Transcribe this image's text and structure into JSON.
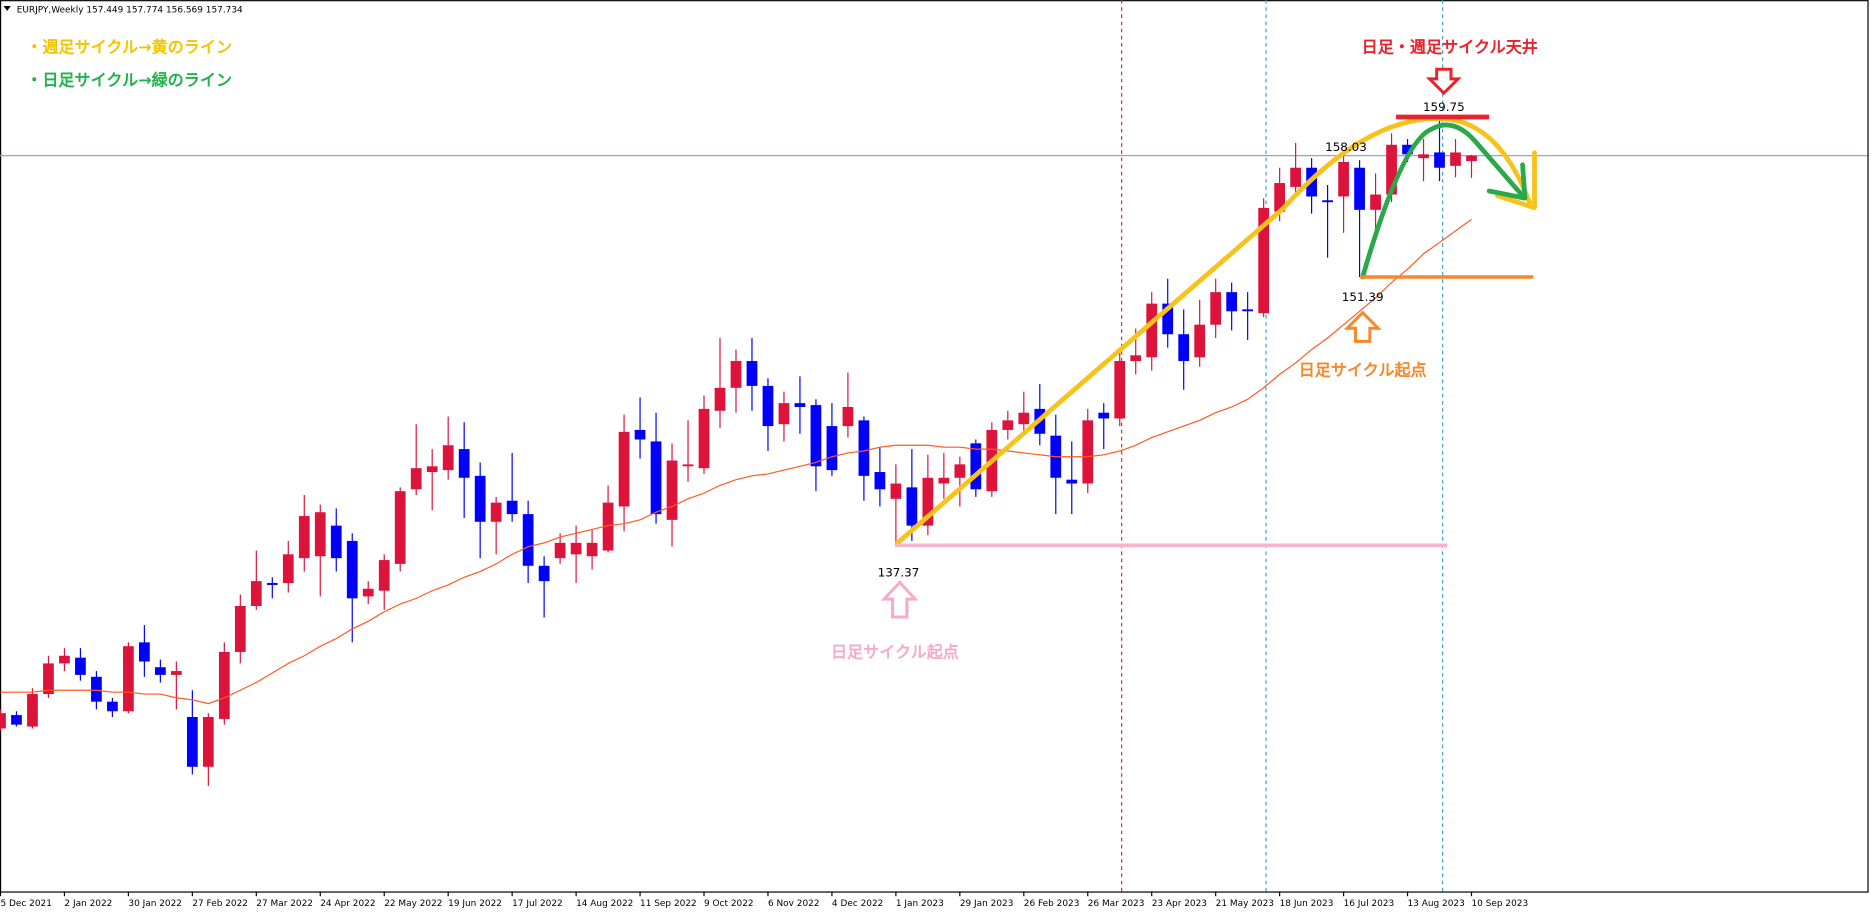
{
  "chart_data": {
    "type": "candlestick",
    "symbol": "EURJPY,Weekly",
    "categories": [
      "5 Dec 2021",
      null,
      null,
      null,
      "2 Jan 2022",
      null,
      null,
      null,
      "30 Jan 2022",
      null,
      null,
      null,
      "27 Feb 2022",
      null,
      null,
      null,
      "27 Mar 2022",
      null,
      null,
      null,
      "24 Apr 2022",
      null,
      null,
      null,
      "22 May 2022",
      null,
      null,
      null,
      "19 Jun 2022",
      null,
      null,
      null,
      "17 Jul 2022",
      null,
      null,
      null,
      "14 Aug 2022",
      null,
      null,
      null,
      "11 Sep 2022",
      null,
      null,
      null,
      "9 Oct 2022",
      null,
      null,
      null,
      "6 Nov 2022",
      null,
      null,
      null,
      "4 Dec 2022",
      null,
      null,
      null,
      "1 Jan 2023",
      null,
      null,
      null,
      "29 Jan 2023",
      null,
      null,
      null,
      "26 Feb 2023",
      null,
      null,
      null,
      "26 Mar 2023",
      null,
      null,
      null,
      "23 Apr 2023",
      null,
      null,
      null,
      "21 May 2023",
      null,
      null,
      null,
      "18 Jun 2023",
      null,
      null,
      null,
      "16 Jul 2023",
      null,
      null,
      null,
      "13 Aug 2023",
      null,
      null,
      null,
      "10 Sep 2023"
    ],
    "open": [
      127.8,
      128.5,
      127.9,
      129.6,
      131.2,
      131.5,
      130.5,
      129.2,
      128.7,
      132.3,
      131.0,
      130.6,
      128.4,
      125.8,
      128.3,
      131.8,
      134.2,
      135.4,
      135.4,
      136.7,
      136.8,
      138.4,
      137.6,
      134.7,
      135.0,
      136.4,
      140.3,
      141.2,
      141.3,
      142.4,
      141.0,
      138.6,
      139.7,
      139.0,
      136.3,
      136.7,
      136.9,
      136.8,
      137.1,
      139.4,
      143.4,
      142.8,
      138.7,
      141.5,
      141.4,
      144.4,
      145.6,
      147.0,
      145.7,
      143.7,
      144.8,
      144.7,
      143.6,
      143.6,
      143.9,
      141.2,
      139.8,
      140.4,
      138.4,
      140.6,
      140.9,
      142.7,
      140.2,
      143.4,
      143.7,
      144.5,
      143.1,
      140.8,
      140.6,
      144.3,
      144.0,
      147.0,
      147.2,
      150.0,
      148.4,
      147.2,
      148.9,
      150.6,
      149.7,
      149.5,
      154.8,
      156.1,
      157.1,
      155.4,
      155.6,
      157.1,
      154.9,
      155.7,
      158.3,
      157.6,
      157.9,
      157.2,
      157.449
    ],
    "high": [
      128.8,
      128.7,
      129.9,
      131.6,
      132.0,
      132.0,
      130.8,
      129.4,
      132.3,
      133.2,
      131.4,
      131.3,
      129.8,
      128.6,
      132.3,
      134.8,
      137.1,
      135.7,
      137.6,
      140.0,
      139.5,
      139.3,
      138.0,
      135.5,
      136.9,
      140.4,
      143.7,
      142.4,
      144.1,
      143.8,
      141.7,
      139.9,
      142.2,
      139.7,
      136.8,
      138.0,
      138.4,
      138.2,
      140.5,
      144.2,
      145.1,
      144.3,
      142.7,
      143.9,
      145.2,
      148.2,
      147.6,
      148.2,
      146.1,
      145.4,
      146.2,
      145.0,
      144.8,
      146.4,
      144.1,
      142.5,
      141.6,
      142.4,
      142.1,
      142.2,
      142.0,
      142.9,
      143.8,
      144.4,
      145.4,
      145.8,
      144.2,
      142.8,
      144.5,
      144.8,
      147.6,
      148.7,
      150.6,
      151.3,
      149.7,
      150.2,
      151.3,
      151.1,
      150.6,
      155.5,
      157.1,
      158.4,
      157.6,
      156.2,
      158.03,
      157.5,
      156.8,
      158.9,
      158.6,
      158.6,
      159.75,
      158.6,
      157.774
    ],
    "low": [
      127.7,
      127.9,
      127.8,
      129.4,
      130.8,
      130.3,
      128.8,
      128.4,
      128.6,
      130.5,
      130.2,
      128.8,
      125.4,
      124.8,
      128.0,
      131.2,
      134.0,
      134.6,
      134.9,
      136.0,
      134.7,
      136.0,
      132.3,
      134.3,
      134.0,
      136.0,
      140.0,
      139.2,
      140.8,
      138.8,
      136.7,
      136.9,
      138.6,
      135.4,
      133.6,
      136.4,
      135.4,
      136.1,
      137.0,
      138.1,
      141.9,
      138.5,
      137.3,
      140.7,
      141.1,
      143.5,
      144.3,
      144.4,
      142.3,
      142.8,
      143.2,
      140.2,
      141.0,
      143.0,
      139.7,
      139.4,
      137.4,
      137.6,
      137.9,
      139.8,
      139.4,
      139.9,
      139.9,
      142.9,
      143.3,
      142.6,
      139.0,
      139.0,
      140.1,
      142.4,
      143.6,
      146.3,
      146.5,
      147.7,
      145.5,
      146.7,
      148.2,
      148.6,
      148.1,
      149.3,
      154.3,
      155.6,
      154.7,
      152.4,
      153.7,
      151.39,
      153.7,
      155.3,
      157.4,
      156.4,
      156.4,
      156.6,
      156.569
    ],
    "close": [
      128.6,
      128.0,
      129.6,
      131.2,
      131.6,
      130.6,
      129.2,
      128.7,
      132.1,
      131.3,
      130.6,
      130.8,
      125.8,
      128.4,
      131.8,
      134.2,
      135.5,
      135.3,
      136.9,
      138.9,
      139.1,
      136.7,
      134.6,
      135.1,
      136.6,
      140.2,
      141.4,
      141.5,
      142.6,
      140.9,
      138.6,
      139.6,
      139.0,
      136.3,
      135.5,
      137.5,
      137.5,
      137.5,
      139.6,
      143.3,
      142.9,
      139.0,
      141.8,
      141.6,
      144.5,
      145.6,
      147.0,
      145.7,
      143.6,
      144.8,
      144.6,
      141.5,
      141.3,
      144.6,
      141.0,
      140.3,
      140.6,
      138.4,
      140.9,
      140.9,
      141.6,
      140.3,
      143.4,
      143.9,
      144.3,
      143.2,
      140.9,
      140.6,
      143.9,
      144.0,
      147.0,
      147.3,
      150.0,
      148.4,
      147.0,
      148.9,
      150.6,
      149.6,
      149.6,
      155.0,
      156.3,
      157.1,
      155.6,
      155.3,
      157.4,
      154.9,
      155.7,
      158.3,
      157.8,
      157.8,
      157.1,
      157.9,
      157.734
    ],
    "up_color": "#dc143c",
    "down_color": "#0000ff",
    "overlays": [
      {
        "color": "#ff5a1f",
        "values": [
          129.7,
          129.7,
          129.7,
          129.8,
          129.8,
          129.8,
          129.8,
          129.7,
          129.7,
          129.6,
          129.6,
          129.4,
          129.3,
          129.1,
          129.4,
          129.8,
          130.2,
          130.7,
          131.2,
          131.6,
          132.1,
          132.5,
          133.0,
          133.4,
          133.9,
          134.3,
          134.6,
          135.0,
          135.3,
          135.7,
          136.0,
          136.4,
          136.9,
          137.3,
          137.5,
          137.8,
          138.0,
          138.2,
          138.4,
          138.5,
          138.7,
          139.1,
          139.4,
          139.8,
          140.1,
          140.5,
          140.8,
          141.0,
          141.1,
          141.3,
          141.5,
          141.7,
          142.0,
          142.2,
          142.3,
          142.5,
          142.6,
          142.6,
          142.6,
          142.5,
          142.5,
          142.4,
          142.4,
          142.3,
          142.2,
          142.1,
          142.0,
          142.0,
          142.0,
          142.1,
          142.3,
          142.6,
          143.0,
          143.3,
          143.6,
          143.9,
          144.3,
          144.6,
          145.0,
          145.6,
          146.3,
          146.9,
          147.6,
          148.2,
          148.9,
          149.6,
          150.3,
          151.1,
          151.8,
          152.6,
          153.2,
          153.8,
          154.4
        ]
      }
    ],
    "ylim": [
      119.41,
      165.86
    ],
    "price_labels": [
      {
        "value": 159.75,
        "color": "#e8232b"
      },
      {
        "value": 158.03
      },
      {
        "value": 151.39,
        "color": "#f5892a"
      },
      {
        "value": 137.37,
        "color": "#f9b3cf"
      }
    ],
    "annotations": [
      {
        "text": "・週足サイクル→黄のライン",
        "color": "#f5c400"
      },
      {
        "text": "・日足サイクル→緑のライン",
        "color": "#22b14c"
      },
      {
        "text": "日足・週足サイクル天井",
        "color": "#e8232b"
      },
      {
        "text": "日足サイクル起点",
        "color": "#f5892a"
      },
      {
        "text": "日足サイクル起点",
        "color": "#f7aac8"
      }
    ]
  }
}
